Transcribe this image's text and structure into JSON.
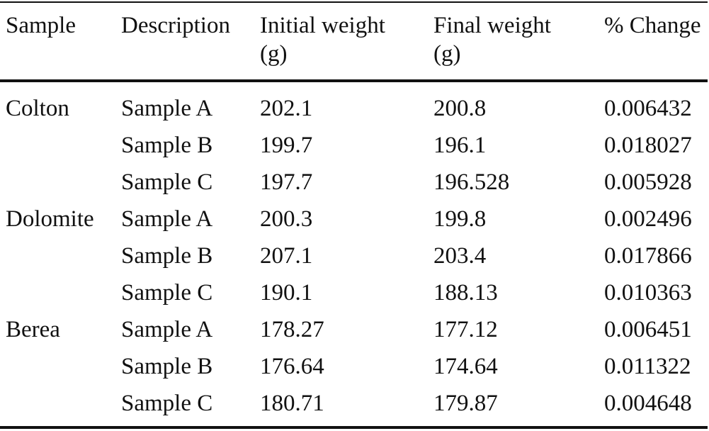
{
  "table": {
    "headers": {
      "sample": "Sample",
      "description": "Description",
      "initial_weight": "Initial weight",
      "initial_weight_unit": "(g)",
      "final_weight": "Final weight",
      "final_weight_unit": "(g)",
      "change": "% Change"
    },
    "rows": [
      {
        "sample": "Colton",
        "description": "Sample A",
        "initial": "202.1",
        "final": "200.8",
        "change": "0.006432"
      },
      {
        "sample": "",
        "description": "Sample B",
        "initial": "199.7",
        "final": "196.1",
        "change": "0.018027"
      },
      {
        "sample": "",
        "description": "Sample C",
        "initial": "197.7",
        "final": "196.528",
        "change": "0.005928"
      },
      {
        "sample": "Dolomite",
        "description": "Sample A",
        "initial": "200.3",
        "final": "199.8",
        "change": "0.002496"
      },
      {
        "sample": "",
        "description": "Sample B",
        "initial": "207.1",
        "final": "203.4",
        "change": "0.017866"
      },
      {
        "sample": "",
        "description": "Sample C",
        "initial": "190.1",
        "final": "188.13",
        "change": "0.010363"
      },
      {
        "sample": "Berea",
        "description": "Sample A",
        "initial": "178.27",
        "final": "177.12",
        "change": "0.006451"
      },
      {
        "sample": "",
        "description": "Sample B",
        "initial": "176.64",
        "final": "174.64",
        "change": "0.011322"
      },
      {
        "sample": "",
        "description": "Sample C",
        "initial": "180.71",
        "final": "179.87",
        "change": "0.004648"
      }
    ]
  }
}
